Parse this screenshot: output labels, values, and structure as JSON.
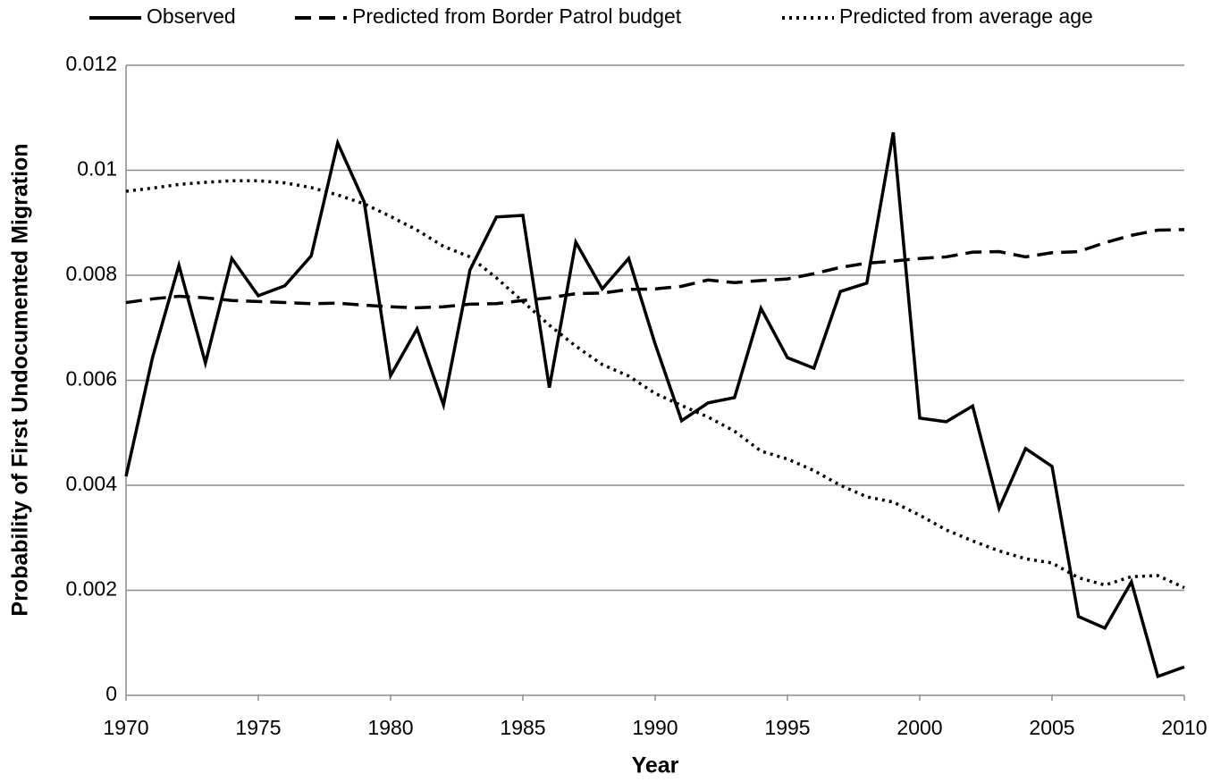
{
  "chart_data": {
    "type": "line",
    "xlabel": "Year",
    "ylabel": "Probability of First Undocumented Migration",
    "x": [
      1970,
      1971,
      1972,
      1973,
      1974,
      1975,
      1976,
      1977,
      1978,
      1979,
      1980,
      1981,
      1982,
      1983,
      1984,
      1985,
      1986,
      1987,
      1988,
      1989,
      1990,
      1991,
      1992,
      1993,
      1994,
      1995,
      1996,
      1997,
      1998,
      1999,
      2000,
      2001,
      2002,
      2003,
      2004,
      2005,
      2006,
      2007,
      2008,
      2009,
      2010
    ],
    "series": [
      {
        "name": "Observed",
        "color": "#000000",
        "dash": "solid",
        "values": [
          0.00417,
          0.00643,
          0.00819,
          0.00633,
          0.00832,
          0.00761,
          0.0078,
          0.00837,
          0.01052,
          0.0094,
          0.00609,
          0.00698,
          0.00553,
          0.0081,
          0.00911,
          0.00914,
          0.00586,
          0.00863,
          0.00774,
          0.00832,
          0.00669,
          0.00523,
          0.00557,
          0.00567,
          0.00737,
          0.00643,
          0.00623,
          0.00769,
          0.00785,
          0.01072,
          0.00528,
          0.00521,
          0.00551,
          0.00356,
          0.0047,
          0.00436,
          0.0015,
          0.00128,
          0.00216,
          0.00036,
          0.00054
        ]
      },
      {
        "name": "Predicted from Border Patrol budget",
        "color": "#000000",
        "dash": "dashed",
        "values": [
          0.00748,
          0.00755,
          0.0076,
          0.00757,
          0.00752,
          0.0075,
          0.00748,
          0.00746,
          0.00747,
          0.00743,
          0.0074,
          0.00738,
          0.0074,
          0.00745,
          0.00746,
          0.00752,
          0.00757,
          0.00765,
          0.00766,
          0.00773,
          0.00774,
          0.00779,
          0.00791,
          0.00786,
          0.0079,
          0.00793,
          0.00803,
          0.00815,
          0.00823,
          0.00827,
          0.00832,
          0.00835,
          0.00844,
          0.00845,
          0.00835,
          0.00843,
          0.00845,
          0.00862,
          0.00876,
          0.00886,
          0.00887
        ]
      },
      {
        "name": "Predicted from average age",
        "color": "#000000",
        "dash": "dotted",
        "values": [
          0.0096,
          0.00966,
          0.00973,
          0.00977,
          0.0098,
          0.0098,
          0.00976,
          0.00967,
          0.00953,
          0.00936,
          0.00912,
          0.00886,
          0.00855,
          0.00835,
          0.00795,
          0.0075,
          0.00705,
          0.00665,
          0.0063,
          0.00608,
          0.00575,
          0.00552,
          0.0053,
          0.00503,
          0.00465,
          0.0045,
          0.00428,
          0.004,
          0.00378,
          0.00368,
          0.00343,
          0.00315,
          0.00294,
          0.00275,
          0.0026,
          0.00252,
          0.00224,
          0.0021,
          0.00226,
          0.00228,
          0.00205
        ]
      }
    ],
    "xlim": [
      1970,
      2010
    ],
    "xticks": [
      1970,
      1975,
      1980,
      1985,
      1990,
      1995,
      2000,
      2005,
      2010
    ],
    "ylim": [
      0,
      0.012
    ],
    "yticks": [
      0,
      0.002,
      0.004,
      0.006,
      0.008,
      0.01,
      0.012
    ],
    "grid": true,
    "legend": "top"
  }
}
